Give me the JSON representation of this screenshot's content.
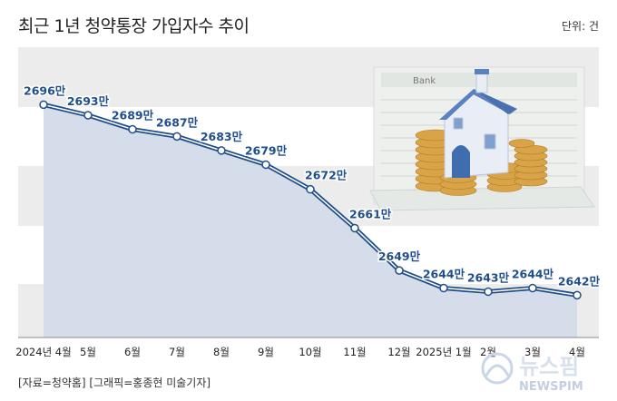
{
  "title": "최근 1년 청약통장 가입자수 추이",
  "unit_label": "단위: 건",
  "source": "[자료=청약홈] [그래픽=홍종현 미술기자]",
  "logo": {
    "text": "뉴스핌",
    "sub": "NEWSPIM"
  },
  "illustration": {
    "ledger_title": "Bank"
  },
  "colors": {
    "line": "#1f4e8a",
    "area": "#d5dcea",
    "band": "#ececec",
    "label": "#1f4e8a"
  },
  "chart_data": {
    "type": "area",
    "categories": [
      "2024년 4월",
      "5월",
      "6월",
      "7월",
      "8월",
      "9월",
      "10월",
      "11월",
      "12월",
      "2025년 1월",
      "2월",
      "3월",
      "4월"
    ],
    "values": [
      2696,
      2693,
      2689,
      2687,
      2683,
      2679,
      2672,
      2661,
      2649,
      2644,
      2643,
      2644,
      2642
    ],
    "data_labels": [
      "2696만",
      "2693만",
      "2689만",
      "2687만",
      "2683만",
      "2679만",
      "2672만",
      "2661만",
      "2649만",
      "2644만",
      "2643만",
      "2644만",
      "2642만"
    ],
    "unit": "만",
    "ylim": [
      2630,
      2702
    ],
    "grid": "horizontal bands",
    "legend": "none"
  }
}
